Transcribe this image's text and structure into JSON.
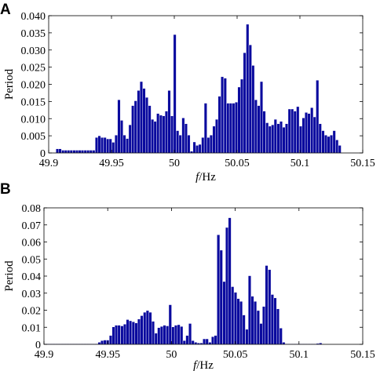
{
  "chart_data": [
    {
      "panel_label": "A",
      "type": "bar",
      "xlabel_italic": "f",
      "xlabel_rest": "/Hz",
      "ylabel": "Period",
      "xlim": [
        49.9,
        50.15
      ],
      "ylim": [
        0,
        0.04
      ],
      "xticks": [
        "49.9",
        "49.95",
        "50",
        "50.05",
        "50.1",
        "50.15"
      ],
      "yticks": [
        "0",
        "0.005",
        "0.010",
        "0.015",
        "0.020",
        "0.025",
        "0.030",
        "0.035",
        "0.040"
      ],
      "bar_width": 0.0022,
      "x": [
        49.9069,
        49.9091,
        49.9114,
        49.9136,
        49.9158,
        49.918,
        49.9203,
        49.9225,
        49.9247,
        49.9269,
        49.9292,
        49.9314,
        49.9336,
        49.9358,
        49.9381,
        49.9403,
        49.9425,
        49.9448,
        49.947,
        49.9492,
        49.9514,
        49.9537,
        49.9559,
        49.9581,
        49.9603,
        49.9626,
        49.9648,
        49.967,
        49.9692,
        49.9715,
        49.9737,
        49.9759,
        49.9781,
        49.9804,
        49.9826,
        49.9848,
        49.987,
        49.9893,
        49.9915,
        49.9937,
        49.9959,
        49.9982,
        50.0004,
        50.0026,
        50.0048,
        50.0071,
        50.0093,
        50.0115,
        50.0138,
        50.016,
        50.0182,
        50.0204,
        50.0227,
        50.0249,
        50.0271,
        50.0293,
        50.0316,
        50.0338,
        50.036,
        50.0382,
        50.0405,
        50.0427,
        50.0449,
        50.0471,
        50.0494,
        50.0516,
        50.0538,
        50.056,
        50.0583,
        50.0605,
        50.0627,
        50.0649,
        50.0672,
        50.0694,
        50.0716,
        50.0739,
        50.0761,
        50.0783,
        50.0805,
        50.0828,
        50.085,
        50.0872,
        50.0894,
        50.0917,
        50.0939,
        50.0961,
        50.0983,
        50.1006,
        50.1028,
        50.105,
        50.1072,
        50.1095,
        50.1117,
        50.1139,
        50.1161,
        50.1184,
        50.1206,
        50.1228,
        50.125,
        50.1273,
        50.1295,
        50.1317
      ],
      "values": [
        0.0012,
        0.0012,
        0.0008,
        0.0008,
        0.0008,
        0.0008,
        0.0008,
        0.0008,
        0.0008,
        0.0008,
        0.0008,
        0.0008,
        0.0008,
        0.0008,
        0.0045,
        0.005,
        0.0045,
        0.0045,
        0.0041,
        0.0041,
        0.0031,
        0.0052,
        0.0155,
        0.0095,
        0.0052,
        0.0042,
        0.0082,
        0.0138,
        0.0152,
        0.0182,
        0.0208,
        0.0188,
        0.0162,
        0.0138,
        0.0098,
        0.0092,
        0.0115,
        0.011,
        0.0108,
        0.0122,
        0.0182,
        0.0108,
        0.0345,
        0.0065,
        0.0052,
        0.0102,
        0.0085,
        0.0052,
        0.0005,
        0.0032,
        0.0022,
        0.0025,
        0.0045,
        0.0145,
        0.0045,
        0.0052,
        0.0078,
        0.0098,
        0.0165,
        0.0222,
        0.0218,
        0.0145,
        0.0145,
        0.0145,
        0.0148,
        0.0192,
        0.0215,
        0.0292,
        0.0375,
        0.0315,
        0.0255,
        0.0155,
        0.0138,
        0.0208,
        0.0122,
        0.0088,
        0.0078,
        0.0082,
        0.0098,
        0.0085,
        0.0092,
        0.0075,
        0.0085,
        0.0128,
        0.0128,
        0.0122,
        0.0135,
        0.0078,
        0.0102,
        0.0118,
        0.0115,
        0.0132,
        0.0105,
        0.0212,
        0.0085,
        0.0065,
        0.0052,
        0.0048,
        0.0052,
        0.0065,
        0.0038,
        0.0022
      ]
    },
    {
      "panel_label": "B",
      "type": "bar",
      "xlabel_italic": "f",
      "xlabel_rest": "/Hz",
      "ylabel": "Period",
      "xlim": [
        49.9,
        50.15
      ],
      "ylim": [
        0,
        0.08
      ],
      "xticks": [
        "49.9",
        "49.95",
        "50",
        "50.05",
        "50.1",
        "50.15"
      ],
      "yticks": [
        "0",
        "0.01",
        "0.02",
        "0.03",
        "0.04",
        "0.05",
        "0.06",
        "0.07",
        "0.08"
      ],
      "bar_width": 0.0022,
      "x": [
        49.9011,
        49.9033,
        49.9055,
        49.9078,
        49.91,
        49.9122,
        49.9144,
        49.9167,
        49.9189,
        49.9211,
        49.9233,
        49.9256,
        49.9278,
        49.93,
        49.9322,
        49.9345,
        49.9367,
        49.9389,
        49.9411,
        49.9434,
        49.9456,
        49.9478,
        49.95,
        49.9523,
        49.9545,
        49.9567,
        49.9589,
        49.9612,
        49.9634,
        49.9656,
        49.9678,
        49.9701,
        49.9723,
        49.9745,
        49.9767,
        49.979,
        49.9812,
        49.9834,
        49.9856,
        49.9879,
        49.9901,
        49.9923,
        49.9945,
        49.9968,
        49.999,
        50.0012,
        50.0034,
        50.0057,
        50.0079,
        50.0101,
        50.0123,
        50.0146,
        50.0168,
        50.019,
        50.0212,
        50.0235,
        50.0257,
        50.0279,
        50.0301,
        50.0324,
        50.0346,
        50.0368,
        50.039,
        50.0413,
        50.0435,
        50.0457,
        50.0479,
        50.0502,
        50.0524,
        50.0546,
        50.0568,
        50.0591,
        50.0613,
        50.0635,
        50.0657,
        50.068,
        50.0702,
        50.0724,
        50.0746,
        50.0769,
        50.0791,
        50.0813,
        50.0835,
        50.0858,
        50.088,
        50.0902,
        50.0924,
        50.0947,
        50.0969,
        50.0991,
        50.1013,
        50.1036,
        50.1058,
        50.108,
        50.1102,
        50.1125,
        50.1147,
        50.1169
      ],
      "values": [
        0.0002,
        0.0002,
        0.0002,
        0.0002,
        0.0002,
        0.0002,
        0.0002,
        0.0002,
        0.0002,
        0.0002,
        0.0002,
        0.0002,
        0.0002,
        0.0002,
        0.0002,
        0.0002,
        0.0002,
        0.0002,
        0.0003,
        0.0012,
        0.0022,
        0.0025,
        0.0025,
        0.0052,
        0.0102,
        0.0112,
        0.0112,
        0.0108,
        0.0118,
        0.0145,
        0.0138,
        0.0132,
        0.0125,
        0.0148,
        0.0168,
        0.0188,
        0.0198,
        0.0188,
        0.0135,
        0.0065,
        0.0098,
        0.0105,
        0.0112,
        0.0108,
        0.0232,
        0.0102,
        0.0112,
        0.0115,
        0.0105,
        0.0022,
        0.0052,
        0.0122,
        0.0022,
        0.0012,
        0.0008,
        0.0008,
        0.0032,
        0.0032,
        0.0012,
        0.0045,
        0.0052,
        0.0642,
        0.0552,
        0.0368,
        0.0685,
        0.0742,
        0.0338,
        0.0305,
        0.0268,
        0.0252,
        0.0172,
        0.0088,
        0.0402,
        0.0282,
        0.0252,
        0.0198,
        0.0122,
        0.0222,
        0.0462,
        0.0438,
        0.0292,
        0.0272,
        0.0208,
        0.0095,
        0.0012,
        0.0002,
        0.0002,
        0.0002,
        0.0002,
        0.0002,
        0.0002,
        0.0002,
        0.0002,
        0.0002,
        0.0002,
        0.0002,
        0.0005,
        0.0008
      ]
    }
  ]
}
